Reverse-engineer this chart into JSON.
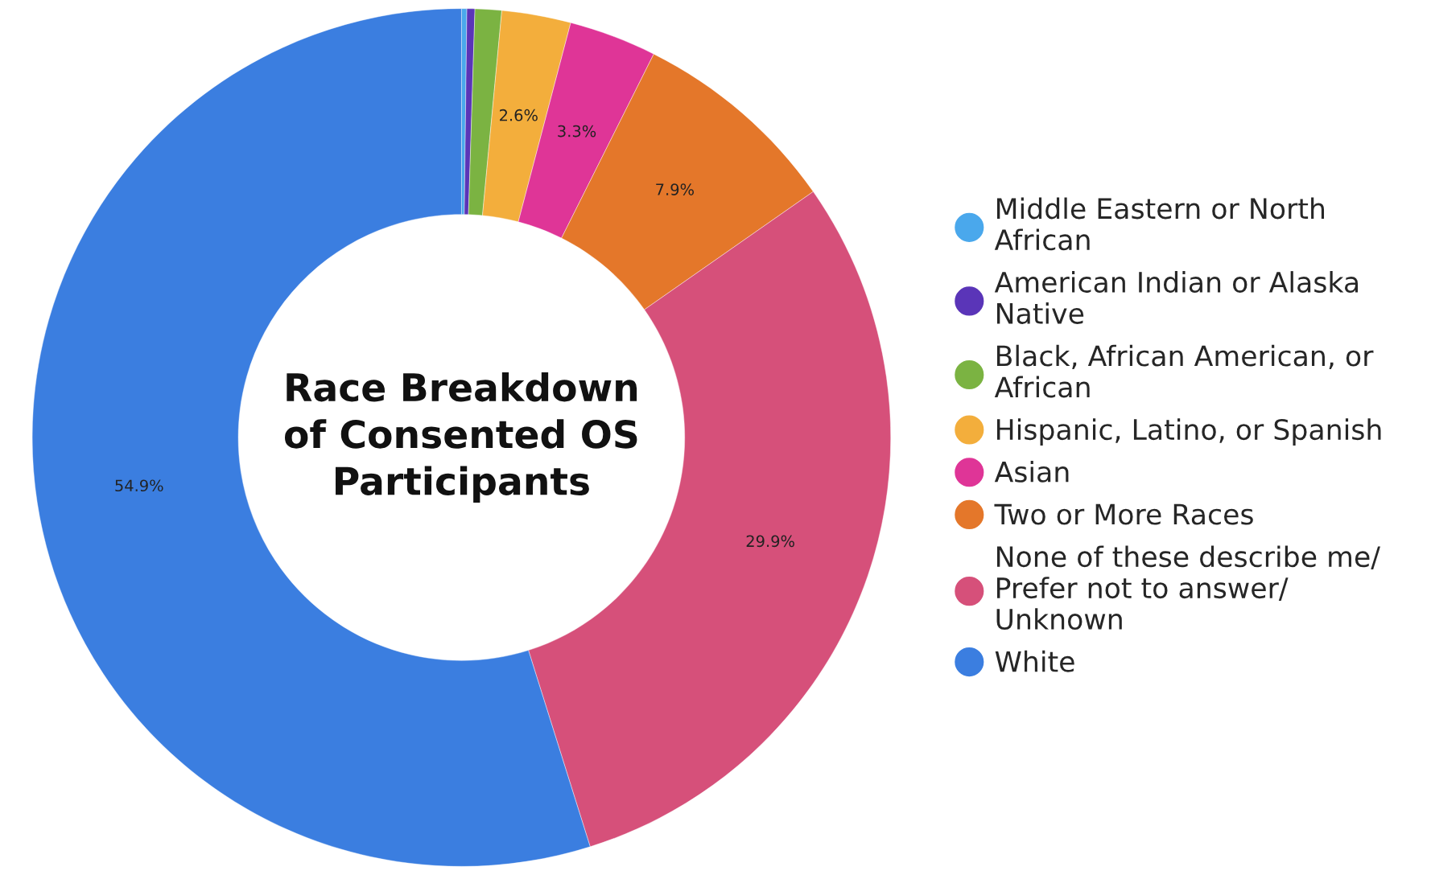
{
  "chart_data": {
    "type": "donut",
    "title": "Race Breakdown\nof Consented OS\nParticipants",
    "categories": [
      "Middle Eastern or North\nAfrican",
      "American Indian or Alaska\nNative",
      "Black, African American, or\nAfrican",
      "Hispanic, Latino, or Spanish",
      "Asian",
      "Two or More Races",
      "None of these describe me/\nPrefer not to answer/\nUnknown",
      "White"
    ],
    "values": [
      0.2,
      0.3,
      1.0,
      2.6,
      3.3,
      7.9,
      29.9,
      54.9
    ],
    "colors": [
      "#4aa8ec",
      "#5a35b8",
      "#7bb342",
      "#f3ae3c",
      "#df3597",
      "#e4772a",
      "#d6507a",
      "#3b7ee0"
    ],
    "value_labels": [
      null,
      null,
      null,
      "2.6%",
      "3.3%",
      "7.9%",
      "29.9%",
      "54.9%"
    ],
    "legend": "right"
  }
}
